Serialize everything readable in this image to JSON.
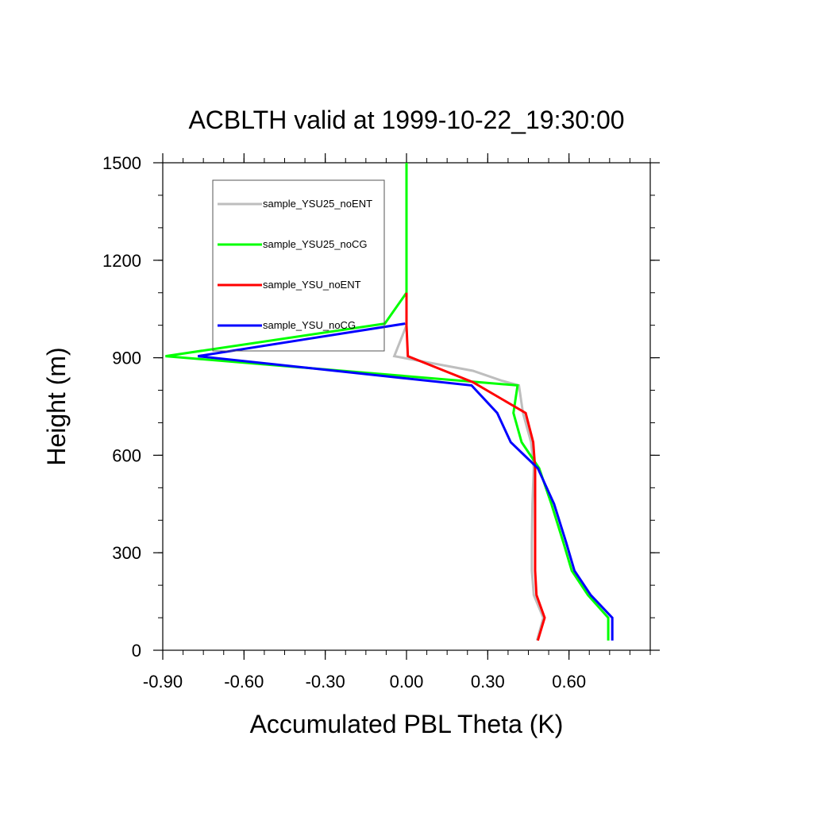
{
  "chart_data": {
    "type": "line",
    "title": "ACBLTH valid at 1999-10-22_19:30:00",
    "xlabel": "Accumulated PBL Theta (K)",
    "ylabel": "Height (m)",
    "xlim": [
      -0.9,
      0.9
    ],
    "ylim": [
      0,
      1500
    ],
    "x_ticks": [
      -0.9,
      -0.6,
      -0.3,
      0.0,
      0.3,
      0.6
    ],
    "x_tick_labels": [
      "-0.90",
      "-0.60",
      "-0.30",
      "0.00",
      "0.30",
      "0.60"
    ],
    "y_ticks": [
      0,
      300,
      600,
      900,
      1200,
      1500
    ],
    "y_tick_labels": [
      "0",
      "300",
      "600",
      "900",
      "1200",
      "1500"
    ],
    "grid": false,
    "legend_position": "top-left",
    "series": [
      {
        "name": "sample_YSU25_noENT",
        "color": "#bebebe",
        "points": [
          [
            0.482,
            30
          ],
          [
            0.505,
            100
          ],
          [
            0.47,
            170
          ],
          [
            0.463,
            245
          ],
          [
            0.463,
            330
          ],
          [
            0.465,
            450
          ],
          [
            0.47,
            560
          ],
          [
            0.46,
            640
          ],
          [
            0.43,
            730
          ],
          [
            0.415,
            815
          ],
          [
            0.35,
            830
          ],
          [
            0.245,
            860
          ],
          [
            -0.045,
            905
          ],
          [
            0.0,
            1000
          ],
          [
            0.0,
            1100
          ],
          [
            0.0,
            1500
          ]
        ]
      },
      {
        "name": "sample_YSU25_noCG",
        "color": "#00ff00",
        "points": [
          [
            0.745,
            30
          ],
          [
            0.745,
            100
          ],
          [
            0.67,
            170
          ],
          [
            0.61,
            245
          ],
          [
            0.58,
            330
          ],
          [
            0.535,
            450
          ],
          [
            0.49,
            560
          ],
          [
            0.425,
            640
          ],
          [
            0.395,
            730
          ],
          [
            0.41,
            815
          ],
          [
            -0.89,
            905
          ],
          [
            -0.08,
            1005
          ],
          [
            0.0,
            1100
          ],
          [
            0.0,
            1500
          ]
        ]
      },
      {
        "name": "sample_YSU_noENT",
        "color": "#ff0000",
        "points": [
          [
            0.485,
            30
          ],
          [
            0.51,
            100
          ],
          [
            0.48,
            170
          ],
          [
            0.475,
            245
          ],
          [
            0.475,
            330
          ],
          [
            0.475,
            450
          ],
          [
            0.475,
            560
          ],
          [
            0.468,
            640
          ],
          [
            0.44,
            730
          ],
          [
            0.245,
            825
          ],
          [
            0.005,
            905
          ],
          [
            0.0,
            1000
          ],
          [
            0.0,
            1100
          ]
        ]
      },
      {
        "name": "sample_YSU_noCG",
        "color": "#0000ff",
        "points": [
          [
            0.76,
            30
          ],
          [
            0.76,
            100
          ],
          [
            0.68,
            170
          ],
          [
            0.62,
            245
          ],
          [
            0.59,
            330
          ],
          [
            0.545,
            450
          ],
          [
            0.485,
            560
          ],
          [
            0.385,
            640
          ],
          [
            0.335,
            730
          ],
          [
            0.24,
            815
          ],
          [
            -0.77,
            905
          ],
          [
            -0.005,
            1005
          ]
        ]
      }
    ]
  }
}
